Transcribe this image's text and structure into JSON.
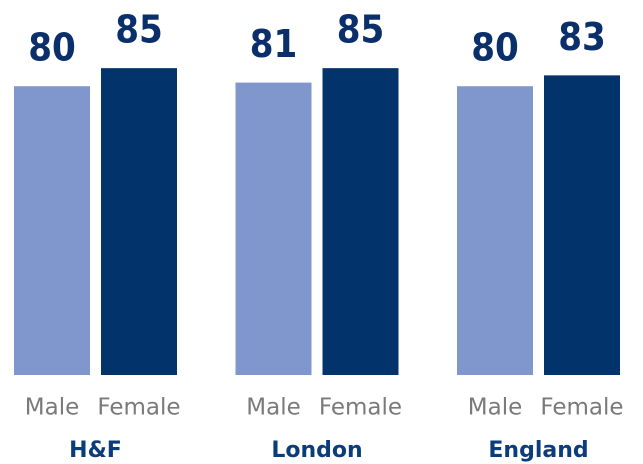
{
  "chart_data": {
    "type": "bar",
    "categories": [
      "H&F",
      "London",
      "England"
    ],
    "series": [
      {
        "name": "Male",
        "color": "#7f97cc",
        "values": [
          80,
          81,
          80
        ]
      },
      {
        "name": "Female",
        "color": "#02336b",
        "values": [
          85,
          85,
          83
        ]
      }
    ]
  }
}
